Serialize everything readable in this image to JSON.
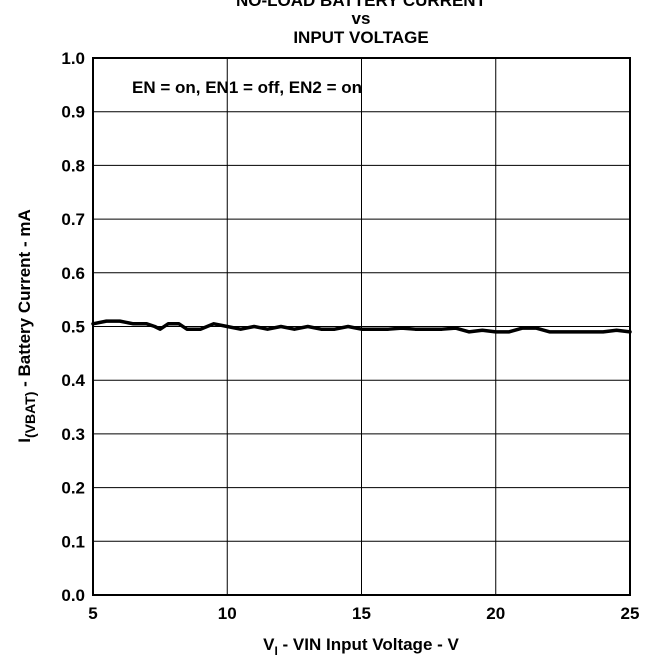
{
  "chart_data": {
    "type": "line",
    "title_lines": [
      "NO-LOAD BATTERY CURRENT",
      "vs",
      "INPUT VOLTAGE"
    ],
    "xlabel_main": "V",
    "xlabel_sub": "I",
    "xlabel_rest": " - VIN Input Voltage - V",
    "ylabel_main": "I",
    "ylabel_sub": "(VBAT)",
    "ylabel_rest": " - Battery Current - mA",
    "annotation": "EN = on, EN1 = off, EN2 = on",
    "xlim": [
      5,
      25
    ],
    "ylim": [
      0.0,
      1.0
    ],
    "x_ticks": [
      5,
      10,
      15,
      20,
      25
    ],
    "x_tick_labels": [
      "5",
      "10",
      "15",
      "20",
      "25"
    ],
    "y_ticks": [
      0.0,
      0.1,
      0.2,
      0.3,
      0.4,
      0.5,
      0.6,
      0.7,
      0.8,
      0.9,
      1.0
    ],
    "y_tick_labels": [
      "0.0",
      "0.1",
      "0.2",
      "0.3",
      "0.4",
      "0.5",
      "0.6",
      "0.7",
      "0.8",
      "0.9",
      "1.0"
    ],
    "grid": true,
    "series": [
      {
        "x": [
          5.0,
          5.5,
          6.0,
          6.5,
          7.0,
          7.3,
          7.5,
          7.8,
          8.2,
          8.5,
          9.0,
          9.5,
          10.0,
          10.5,
          11.0,
          11.5,
          12.0,
          12.5,
          13.0,
          13.5,
          14.0,
          14.5,
          15.0,
          15.5,
          16.0,
          16.5,
          17.0,
          17.5,
          18.0,
          18.5,
          19.0,
          19.5,
          20.0,
          20.5,
          21.0,
          21.5,
          22.0,
          22.5,
          23.0,
          23.5,
          24.0,
          24.5,
          25.0
        ],
        "y": [
          0.505,
          0.51,
          0.51,
          0.505,
          0.505,
          0.5,
          0.495,
          0.505,
          0.505,
          0.495,
          0.495,
          0.505,
          0.5,
          0.495,
          0.5,
          0.495,
          0.5,
          0.495,
          0.5,
          0.495,
          0.495,
          0.5,
          0.495,
          0.495,
          0.495,
          0.497,
          0.495,
          0.495,
          0.495,
          0.497,
          0.49,
          0.493,
          0.49,
          0.49,
          0.497,
          0.497,
          0.49,
          0.49,
          0.49,
          0.49,
          0.49,
          0.493,
          0.49
        ]
      }
    ]
  }
}
